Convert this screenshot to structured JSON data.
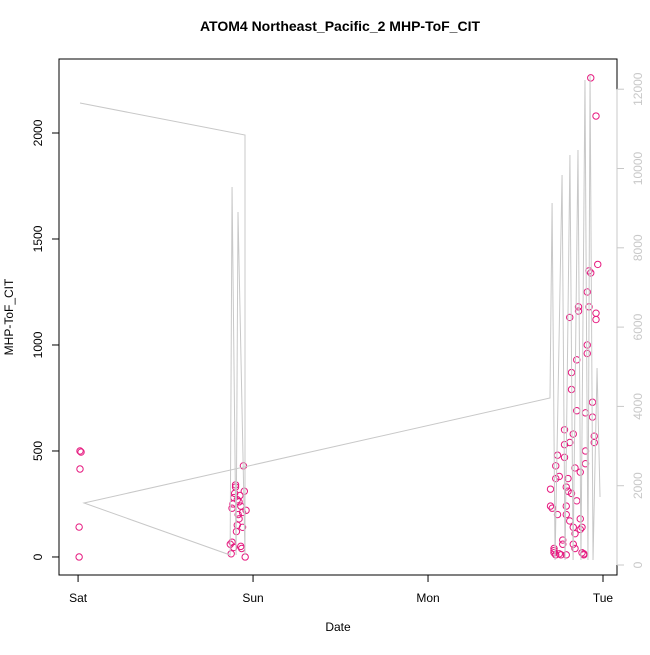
{
  "chart_data": {
    "type": "scatter",
    "title": "ATOM4 Northeast_Pacific_2 MHP-ToF_CIT",
    "x_label": "Date",
    "y_label": "MHP-ToF_CIT",
    "xlim": [
      -0.109,
      3.08
    ],
    "xticks": [
      {
        "value": 0,
        "label": "Sat"
      },
      {
        "value": 1,
        "label": "Sun"
      },
      {
        "value": 2,
        "label": "Mon"
      },
      {
        "value": 3,
        "label": "Tue"
      }
    ],
    "ylim": [
      -85,
      2349
    ],
    "yticks": [
      0,
      500,
      1000,
      1500,
      2000
    ],
    "y2lim": [
      -252,
      12762
    ],
    "y2ticks": [
      0,
      2000,
      4000,
      6000,
      8000,
      10000,
      12000
    ],
    "y2_color": "#c8c8c8",
    "series": [
      {
        "mode": "points",
        "color": "#e6197f",
        "x": [
          0.011,
          0.017,
          0.011,
          0.006,
          0.006,
          0.87,
          0.875,
          0.88,
          0.88,
          0.885,
          0.89,
          0.89,
          0.895,
          0.9,
          0.9,
          0.905,
          0.91,
          0.91,
          0.915,
          0.92,
          0.92,
          0.925,
          0.93,
          0.93,
          0.935,
          0.94,
          0.94,
          0.945,
          0.95,
          0.955,
          0.96,
          2.7,
          2.7,
          2.71,
          2.72,
          2.72,
          2.72,
          2.73,
          2.73,
          2.73,
          2.74,
          2.74,
          2.75,
          2.75,
          2.76,
          2.77,
          2.77,
          2.78,
          2.78,
          2.78,
          2.79,
          2.79,
          2.79,
          2.79,
          2.8,
          2.8,
          2.81,
          2.81,
          2.81,
          2.82,
          2.82,
          2.82,
          2.83,
          2.83,
          2.83,
          2.84,
          2.84,
          2.84,
          2.85,
          2.85,
          2.85,
          2.86,
          2.86,
          2.87,
          2.87,
          2.87,
          2.88,
          2.88,
          2.89,
          2.89,
          2.9,
          2.9,
          2.9,
          2.91,
          2.91,
          2.91,
          2.92,
          2.92,
          2.93,
          2.93,
          2.94,
          2.94,
          2.95,
          2.95,
          2.96,
          2.96,
          2.97,
          2.96
        ],
        "values": [
          500,
          495,
          415,
          141,
          0,
          60,
          15,
          70,
          230,
          250,
          45,
          280,
          300,
          330,
          340,
          120,
          270,
          150,
          200,
          260,
          180,
          290,
          50,
          240,
          40,
          210,
          140,
          430,
          310,
          0,
          220,
          320,
          240,
          230,
          20,
          30,
          40,
          370,
          430,
          10,
          200,
          480,
          380,
          15,
          10,
          80,
          60,
          600,
          530,
          470,
          330,
          240,
          200,
          10,
          310,
          370,
          540,
          170,
          1130,
          300,
          870,
          790,
          580,
          140,
          60,
          40,
          110,
          420,
          265,
          690,
          930,
          1160,
          1180,
          400,
          180,
          130,
          140,
          20,
          10,
          15,
          680,
          440,
          500,
          1000,
          960,
          1250,
          1350,
          1180,
          1340,
          2260,
          730,
          660,
          570,
          540,
          1120,
          1150,
          1380,
          2080
        ]
      },
      {
        "mode": "line",
        "axis": "y2",
        "color": "#c8c8c8",
        "x": [
          0.011,
          0.954,
          0.954,
          0.914,
          0.903,
          0.88,
          0.869,
          0.034,
          2.697,
          2.709,
          2.726,
          2.766,
          2.783,
          2.811,
          2.829,
          2.857,
          2.874,
          2.897,
          2.914,
          2.926,
          2.943,
          2.966,
          2.983
        ],
        "values": [
          11652,
          10845,
          252,
          8903,
          252,
          9533,
          252,
          1564,
          4212,
          9130,
          126,
          9836,
          126,
          10340,
          126,
          10466,
          126,
          12232,
          126,
          12358,
          126,
          4968,
          1715
        ]
      }
    ]
  }
}
